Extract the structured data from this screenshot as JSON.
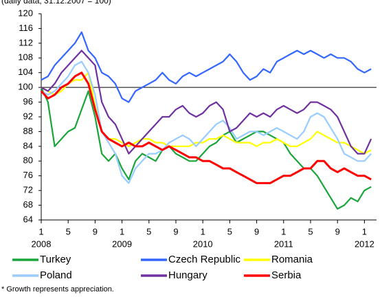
{
  "chart_data": {
    "type": "line",
    "subtitle": "(daily data, 31.12.2007 = 100)",
    "footnote": "* Growth represents appreciation.",
    "x": [
      "2008-01",
      "2008-02",
      "2008-03",
      "2008-04",
      "2008-05",
      "2008-06",
      "2008-07",
      "2008-08",
      "2008-09",
      "2008-10",
      "2008-11",
      "2008-12",
      "2009-01",
      "2009-02",
      "2009-03",
      "2009-04",
      "2009-05",
      "2009-06",
      "2009-07",
      "2009-08",
      "2009-09",
      "2009-10",
      "2009-11",
      "2009-12",
      "2010-01",
      "2010-02",
      "2010-03",
      "2010-04",
      "2010-05",
      "2010-06",
      "2010-07",
      "2010-08",
      "2010-09",
      "2010-10",
      "2010-11",
      "2010-12",
      "2011-01",
      "2011-02",
      "2011-03",
      "2011-04",
      "2011-05",
      "2011-06",
      "2011-07",
      "2011-08",
      "2011-09",
      "2011-10",
      "2011-11",
      "2011-12",
      "2012-01",
      "2012-02"
    ],
    "xticks": [
      {
        "value": "2008-01",
        "label": "1"
      },
      {
        "value": "2008-05",
        "label": "5"
      },
      {
        "value": "2008-09",
        "label": "9"
      },
      {
        "value": "2009-01",
        "label": "1"
      },
      {
        "value": "2009-05",
        "label": "5"
      },
      {
        "value": "2009-09",
        "label": "9"
      },
      {
        "value": "2010-01",
        "label": "1"
      },
      {
        "value": "2010-05",
        "label": "5"
      },
      {
        "value": "2010-09",
        "label": "9"
      },
      {
        "value": "2011-01",
        "label": "1"
      },
      {
        "value": "2011-05",
        "label": "5"
      },
      {
        "value": "2011-09",
        "label": "9"
      },
      {
        "value": "2012-01",
        "label": "1"
      }
    ],
    "xyears": [
      {
        "value": "2008-01",
        "label": "2008"
      },
      {
        "value": "2009-01",
        "label": "2009"
      },
      {
        "value": "2010-01",
        "label": "2010"
      },
      {
        "value": "2011-01",
        "label": "2011"
      },
      {
        "value": "2012-01",
        "label": "2012"
      }
    ],
    "ylim": [
      64,
      120
    ],
    "yticks": [
      64,
      68,
      72,
      76,
      80,
      84,
      88,
      92,
      96,
      100,
      104,
      108,
      112,
      116,
      120
    ],
    "ref_line": 100,
    "series": [
      {
        "name": "Turkey",
        "color": "#1aa53a",
        "values": [
          100,
          96,
          84,
          86,
          88,
          89,
          94,
          99,
          92,
          82,
          80,
          82,
          78,
          75,
          80,
          82,
          81,
          80,
          83,
          84,
          82,
          81,
          80,
          80,
          82,
          84,
          85,
          87,
          88,
          85,
          86,
          87,
          88,
          88,
          87,
          86,
          85,
          82,
          80,
          78,
          78,
          76,
          73,
          70,
          67,
          68,
          70,
          69,
          72,
          73
        ]
      },
      {
        "name": "Czech Republic",
        "color": "#3366ff",
        "values": [
          102,
          103,
          106,
          108,
          110,
          112,
          115,
          110,
          108,
          104,
          103,
          101,
          97,
          96,
          99,
          100,
          101,
          102,
          104,
          102,
          101,
          103,
          104,
          103,
          104,
          105,
          106,
          107,
          109,
          107,
          104,
          102,
          103,
          105,
          104,
          107,
          108,
          109,
          110,
          109,
          110,
          109,
          108,
          109,
          108,
          108,
          107,
          105,
          104,
          105
        ]
      },
      {
        "name": "Romania",
        "color": "#ffff00",
        "values": [
          100,
          99,
          98,
          99,
          101,
          102,
          102,
          104,
          95,
          88,
          86,
          86,
          85,
          84,
          85,
          86,
          86,
          85,
          85,
          84,
          84,
          84,
          84,
          85,
          85,
          86,
          86,
          87,
          86,
          85,
          85,
          85,
          84,
          85,
          85,
          86,
          85,
          84,
          84,
          85,
          86,
          88,
          87,
          86,
          85,
          85,
          84,
          83,
          82,
          83
        ]
      },
      {
        "name": "Poland",
        "color": "#99ccff",
        "values": [
          99,
          98,
          99,
          101,
          103,
          106,
          107,
          104,
          98,
          88,
          85,
          82,
          76,
          74,
          78,
          80,
          82,
          82,
          83,
          85,
          86,
          87,
          86,
          84,
          86,
          88,
          90,
          91,
          89,
          86,
          87,
          88,
          88,
          87,
          88,
          89,
          88,
          87,
          86,
          88,
          92,
          93,
          92,
          89,
          86,
          82,
          81,
          80,
          80,
          82
        ]
      },
      {
        "name": "Hungary",
        "color": "#7030a0",
        "values": [
          100,
          99,
          101,
          104,
          106,
          108,
          110,
          108,
          106,
          96,
          92,
          90,
          86,
          82,
          84,
          86,
          88,
          90,
          92,
          92,
          94,
          95,
          93,
          92,
          93,
          95,
          96,
          94,
          88,
          89,
          91,
          93,
          92,
          93,
          92,
          94,
          95,
          94,
          93,
          94,
          96,
          96,
          95,
          94,
          92,
          88,
          84,
          82,
          82,
          86
        ]
      },
      {
        "name": "Serbia",
        "color": "#ff0000",
        "values": [
          99,
          97,
          98,
          100,
          101,
          103,
          104,
          101,
          94,
          88,
          86,
          85,
          84,
          85,
          84,
          84,
          85,
          84,
          83,
          84,
          83,
          82,
          81,
          81,
          80,
          80,
          79,
          78,
          78,
          77,
          76,
          75,
          74,
          74,
          74,
          75,
          76,
          76,
          77,
          78,
          78,
          80,
          80,
          78,
          77,
          78,
          77,
          76,
          76,
          75
        ]
      }
    ]
  }
}
